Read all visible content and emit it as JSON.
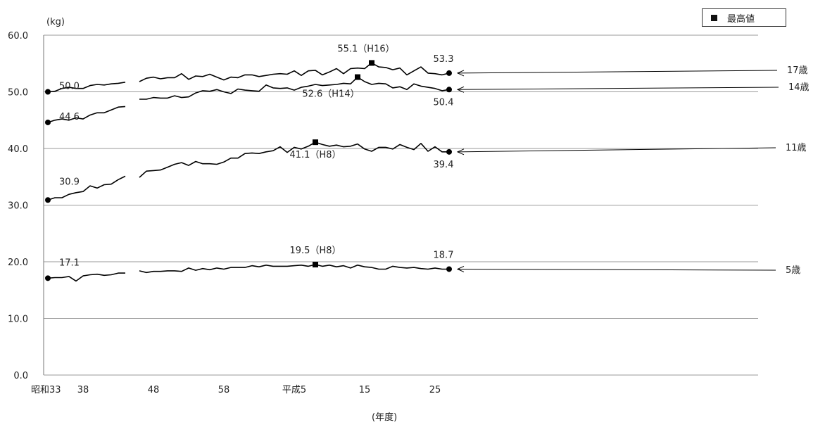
{
  "chart_data": {
    "type": "line",
    "y_unit_label": "(kg)",
    "xlabel": "(年度)",
    "ylim": [
      0,
      60
    ],
    "y_ticks": [
      "0.0",
      "10.0",
      "20.0",
      "30.0",
      "40.0",
      "50.0",
      "60.0"
    ],
    "x_ticks": [
      {
        "year": 1958,
        "label": "昭和33"
      },
      {
        "year": 1963,
        "label": "38"
      },
      {
        "year": 1973,
        "label": "48"
      },
      {
        "year": 1983,
        "label": "58"
      },
      {
        "year": 1993,
        "label": "平成5"
      },
      {
        "year": 2003,
        "label": "15"
      },
      {
        "year": 2013,
        "label": "25"
      }
    ],
    "legend": {
      "marker": "■",
      "label": "最高値"
    },
    "series": [
      {
        "name": "17歳",
        "segments": [
          [
            [
              1958,
              50.0
            ],
            [
              1959,
              50.1
            ],
            [
              1960,
              50.6
            ],
            [
              1961,
              50.8
            ],
            [
              1962,
              50.6
            ],
            [
              1963,
              50.6
            ],
            [
              1964,
              51.1
            ],
            [
              1965,
              51.3
            ],
            [
              1966,
              51.2
            ],
            [
              1967,
              51.4
            ],
            [
              1968,
              51.5
            ],
            [
              1969,
              51.7
            ]
          ],
          [
            [
              1971,
              51.8
            ],
            [
              1972,
              52.4
            ],
            [
              1973,
              52.6
            ],
            [
              1974,
              52.3
            ],
            [
              1975,
              52.5
            ],
            [
              1976,
              52.5
            ],
            [
              1977,
              53.2
            ],
            [
              1978,
              52.2
            ],
            [
              1979,
              52.8
            ],
            [
              1980,
              52.7
            ],
            [
              1981,
              53.1
            ],
            [
              1982,
              52.6
            ],
            [
              1983,
              52.1
            ],
            [
              1984,
              52.6
            ],
            [
              1985,
              52.5
            ],
            [
              1986,
              53.0
            ],
            [
              1987,
              53.0
            ],
            [
              1988,
              52.7
            ],
            [
              1989,
              52.9
            ],
            [
              1990,
              53.1
            ],
            [
              1991,
              53.2
            ],
            [
              1992,
              53.1
            ],
            [
              1993,
              53.7
            ],
            [
              1994,
              52.9
            ],
            [
              1995,
              53.7
            ],
            [
              1996,
              53.8
            ],
            [
              1997,
              53.0
            ],
            [
              1998,
              53.5
            ],
            [
              1999,
              54.1
            ],
            [
              2000,
              53.2
            ],
            [
              2001,
              54.1
            ],
            [
              2002,
              54.2
            ],
            [
              2003,
              54.1
            ],
            [
              2004,
              55.1
            ],
            [
              2005,
              54.4
            ],
            [
              2006,
              54.3
            ],
            [
              2007,
              53.9
            ],
            [
              2008,
              54.2
            ],
            [
              2009,
              53.0
            ],
            [
              2010,
              53.7
            ],
            [
              2011,
              54.4
            ],
            [
              2012,
              53.3
            ],
            [
              2013,
              53.2
            ],
            [
              2014,
              53.0
            ],
            [
              2015,
              53.3
            ]
          ]
        ],
        "label": "17歳",
        "start_label": "50.0",
        "end_label": "53.3",
        "max_point": [
          2004,
          55.1
        ],
        "max_label": "55.1（H16）"
      },
      {
        "name": "14歳",
        "segments": [
          [
            [
              1958,
              44.6
            ],
            [
              1959,
              45.0
            ],
            [
              1960,
              45.2
            ],
            [
              1961,
              45.0
            ],
            [
              1962,
              45.4
            ],
            [
              1963,
              45.2
            ],
            [
              1964,
              45.9
            ],
            [
              1965,
              46.3
            ],
            [
              1966,
              46.3
            ],
            [
              1967,
              46.8
            ],
            [
              1968,
              47.3
            ],
            [
              1969,
              47.4
            ]
          ],
          [
            [
              1971,
              48.7
            ],
            [
              1972,
              48.7
            ],
            [
              1973,
              49.0
            ],
            [
              1974,
              48.9
            ],
            [
              1975,
              48.9
            ],
            [
              1976,
              49.3
            ],
            [
              1977,
              49.0
            ],
            [
              1978,
              49.1
            ],
            [
              1979,
              49.8
            ],
            [
              1980,
              50.2
            ],
            [
              1981,
              50.1
            ],
            [
              1982,
              50.4
            ],
            [
              1983,
              50.0
            ],
            [
              1984,
              49.7
            ],
            [
              1985,
              50.5
            ],
            [
              1986,
              50.3
            ],
            [
              1987,
              50.2
            ],
            [
              1988,
              50.1
            ],
            [
              1989,
              51.2
            ],
            [
              1990,
              50.7
            ],
            [
              1991,
              50.6
            ],
            [
              1992,
              50.7
            ],
            [
              1993,
              50.3
            ],
            [
              1994,
              50.8
            ],
            [
              1995,
              51.0
            ],
            [
              1996,
              51.3
            ],
            [
              1997,
              51.1
            ],
            [
              1998,
              51.2
            ],
            [
              1999,
              51.3
            ],
            [
              2000,
              51.5
            ],
            [
              2001,
              51.4
            ],
            [
              2002,
              52.6
            ],
            [
              2003,
              51.8
            ],
            [
              2004,
              51.3
            ],
            [
              2005,
              51.5
            ],
            [
              2006,
              51.4
            ],
            [
              2007,
              50.7
            ],
            [
              2008,
              50.9
            ],
            [
              2009,
              50.4
            ],
            [
              2010,
              51.4
            ],
            [
              2011,
              51.0
            ],
            [
              2012,
              50.8
            ],
            [
              2013,
              50.6
            ],
            [
              2014,
              50.2
            ],
            [
              2015,
              50.4
            ]
          ]
        ],
        "label": "14歳",
        "start_label": "44.6",
        "end_label": "50.4",
        "max_point": [
          2002,
          52.6
        ],
        "max_label": "52.6（H14）"
      },
      {
        "name": "11歳",
        "segments": [
          [
            [
              1958,
              30.9
            ],
            [
              1959,
              31.3
            ],
            [
              1960,
              31.3
            ],
            [
              1961,
              31.9
            ],
            [
              1962,
              32.2
            ],
            [
              1963,
              32.4
            ],
            [
              1964,
              33.4
            ],
            [
              1965,
              33.0
            ],
            [
              1966,
              33.6
            ],
            [
              1967,
              33.7
            ],
            [
              1968,
              34.5
            ],
            [
              1969,
              35.1
            ]
          ],
          [
            [
              1971,
              34.9
            ],
            [
              1972,
              36.0
            ],
            [
              1973,
              36.1
            ],
            [
              1974,
              36.2
            ],
            [
              1975,
              36.7
            ],
            [
              1976,
              37.2
            ],
            [
              1977,
              37.5
            ],
            [
              1978,
              37.0
            ],
            [
              1979,
              37.7
            ],
            [
              1980,
              37.3
            ],
            [
              1981,
              37.3
            ],
            [
              1982,
              37.2
            ],
            [
              1983,
              37.6
            ],
            [
              1984,
              38.3
            ],
            [
              1985,
              38.3
            ],
            [
              1986,
              39.1
            ],
            [
              1987,
              39.2
            ],
            [
              1988,
              39.1
            ],
            [
              1989,
              39.4
            ],
            [
              1990,
              39.6
            ],
            [
              1991,
              40.3
            ],
            [
              1992,
              39.3
            ],
            [
              1993,
              40.2
            ],
            [
              1994,
              39.9
            ],
            [
              1995,
              40.4
            ],
            [
              1996,
              41.1
            ],
            [
              1997,
              40.7
            ],
            [
              1998,
              40.4
            ],
            [
              1999,
              40.6
            ],
            [
              2000,
              40.3
            ],
            [
              2001,
              40.4
            ],
            [
              2002,
              40.8
            ],
            [
              2003,
              39.9
            ],
            [
              2004,
              39.5
            ],
            [
              2005,
              40.2
            ],
            [
              2006,
              40.2
            ],
            [
              2007,
              39.9
            ],
            [
              2008,
              40.7
            ],
            [
              2009,
              40.2
            ],
            [
              2010,
              39.8
            ],
            [
              2011,
              40.9
            ],
            [
              2012,
              39.5
            ],
            [
              2013,
              40.3
            ],
            [
              2014,
              39.4
            ],
            [
              2015,
              39.4
            ]
          ]
        ],
        "label": "11歳",
        "start_label": "30.9",
        "end_label": "39.4",
        "max_point": [
          1996,
          41.1
        ],
        "max_label": "41.1（H8）"
      },
      {
        "name": "5歳",
        "segments": [
          [
            [
              1958,
              17.1
            ],
            [
              1959,
              17.2
            ],
            [
              1960,
              17.2
            ],
            [
              1961,
              17.4
            ],
            [
              1962,
              16.6
            ],
            [
              1963,
              17.5
            ],
            [
              1964,
              17.7
            ],
            [
              1965,
              17.8
            ],
            [
              1966,
              17.6
            ],
            [
              1967,
              17.7
            ],
            [
              1968,
              18.0
            ],
            [
              1969,
              18.0
            ]
          ],
          [
            [
              1971,
              18.4
            ],
            [
              1972,
              18.1
            ],
            [
              1973,
              18.3
            ],
            [
              1974,
              18.3
            ],
            [
              1975,
              18.4
            ],
            [
              1976,
              18.4
            ],
            [
              1977,
              18.3
            ],
            [
              1978,
              18.9
            ],
            [
              1979,
              18.5
            ],
            [
              1980,
              18.8
            ],
            [
              1981,
              18.6
            ],
            [
              1982,
              18.9
            ],
            [
              1983,
              18.7
            ],
            [
              1984,
              19.0
            ],
            [
              1985,
              19.0
            ],
            [
              1986,
              19.0
            ],
            [
              1987,
              19.3
            ],
            [
              1988,
              19.1
            ],
            [
              1989,
              19.4
            ],
            [
              1990,
              19.2
            ],
            [
              1991,
              19.2
            ],
            [
              1992,
              19.2
            ],
            [
              1993,
              19.3
            ],
            [
              1994,
              19.4
            ],
            [
              1995,
              19.2
            ],
            [
              1996,
              19.5
            ],
            [
              1997,
              19.2
            ],
            [
              1998,
              19.4
            ],
            [
              1999,
              19.1
            ],
            [
              2000,
              19.3
            ],
            [
              2001,
              18.9
            ],
            [
              2002,
              19.4
            ],
            [
              2003,
              19.1
            ],
            [
              2004,
              19.0
            ],
            [
              2005,
              18.7
            ],
            [
              2006,
              18.7
            ],
            [
              2007,
              19.2
            ],
            [
              2008,
              19.0
            ],
            [
              2009,
              18.9
            ],
            [
              2010,
              19.0
            ],
            [
              2011,
              18.8
            ],
            [
              2012,
              18.7
            ],
            [
              2013,
              18.9
            ],
            [
              2014,
              18.7
            ],
            [
              2015,
              18.7
            ]
          ]
        ],
        "label": "5歳",
        "start_label": "17.1",
        "end_label": "18.7",
        "max_point": [
          1996,
          19.5
        ],
        "max_label": "19.5（H8）"
      }
    ]
  }
}
